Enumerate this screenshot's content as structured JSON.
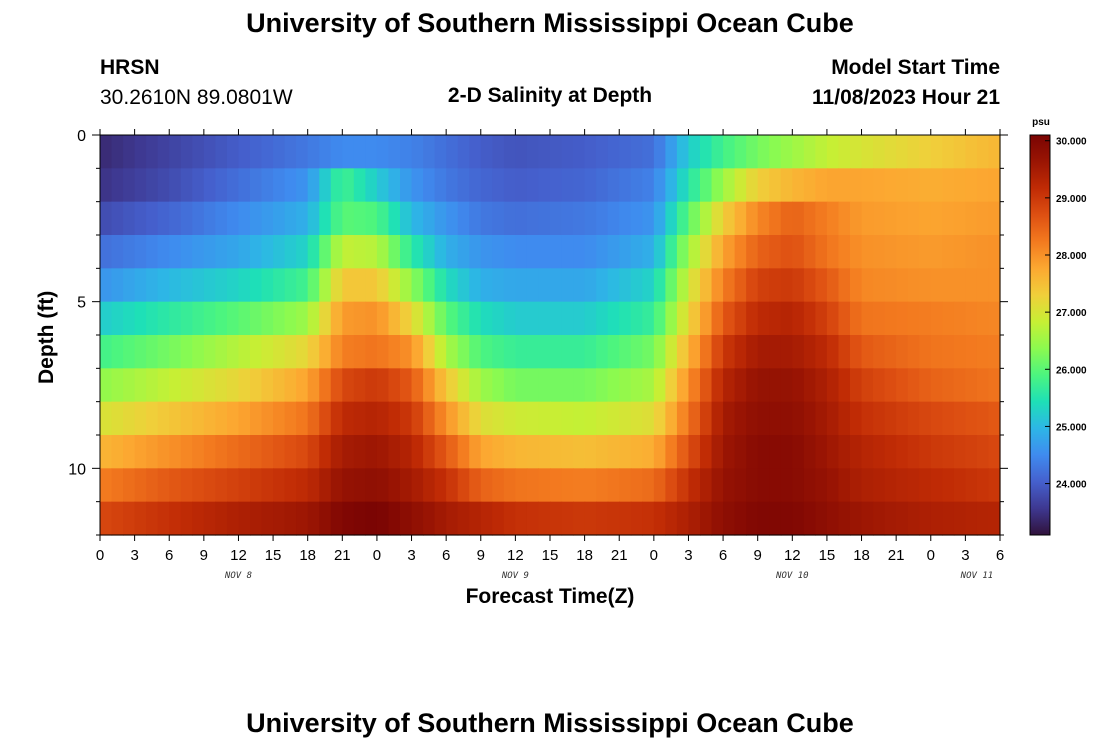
{
  "header": {
    "title_top": "University of Southern Mississippi Ocean Cube",
    "title_bottom": "University of Southern Mississippi Ocean Cube",
    "station": "HRSN",
    "coords": "30.2610N  89.0801W",
    "plot_title": "2-D Salinity at Depth",
    "start_label": "Model Start Time",
    "start_value": "11/08/2023 Hour 21"
  },
  "chart_data": {
    "type": "heatmap",
    "title": "2-D Salinity at Depth",
    "xlabel": "Forecast Time(Z)",
    "ylabel": "Depth (ft)",
    "x_ticks": [
      "0",
      "3",
      "6",
      "9",
      "12",
      "15",
      "18",
      "21",
      "0",
      "3",
      "6",
      "9",
      "12",
      "15",
      "18",
      "21",
      "0",
      "3",
      "6",
      "9",
      "12",
      "15",
      "18",
      "21",
      "0",
      "3",
      "6"
    ],
    "x_range_hours": [
      0,
      78
    ],
    "day_labels": [
      {
        "label": "NOV 8",
        "hour": 12
      },
      {
        "label": "NOV 9",
        "hour": 36
      },
      {
        "label": "NOV 10",
        "hour": 60
      },
      {
        "label": "NOV 11",
        "hour": 76
      }
    ],
    "y_ticks": [
      "0",
      "5",
      "10"
    ],
    "y_range_ft": [
      0,
      12
    ],
    "depth_levels_ft": [
      0.5,
      1.5,
      2.5,
      3.5,
      4.5,
      5.5,
      6.5,
      7.5,
      8.5,
      9.5,
      10.5,
      11.5
    ],
    "units": "psu",
    "colorbar_ticks": [
      "30.000",
      "29.000",
      "28.000",
      "27.000",
      "26.000",
      "25.000",
      "24.000"
    ],
    "color_range": [
      23.1,
      30.1
    ],
    "colorbar_stops": [
      "#30123b",
      "#3e3891",
      "#4560cd",
      "#3f8bef",
      "#2db6e6",
      "#1ee0b7",
      "#4cf57f",
      "#8cfa4f",
      "#c7ef34",
      "#f0cf3a",
      "#fca831",
      "#f37a1f",
      "#de5012",
      "#c02b05",
      "#9a1503",
      "#7a0403"
    ],
    "time_keys_hours": [
      0,
      6,
      12,
      18,
      21,
      24,
      27,
      30,
      33,
      36,
      42,
      48,
      51,
      54,
      57,
      60,
      63,
      66,
      72,
      78
    ],
    "salinity_psu": [
      [
        23.4,
        23.7,
        24.0,
        24.3,
        24.5,
        24.5,
        24.4,
        24.2,
        24.0,
        23.9,
        24.0,
        24.2,
        25.2,
        25.8,
        26.2,
        26.5,
        26.8,
        27.0,
        27.3,
        27.6
      ],
      [
        23.5,
        23.8,
        24.2,
        24.6,
        25.8,
        25.2,
        24.6,
        24.3,
        24.1,
        24.0,
        24.1,
        24.4,
        25.5,
        26.5,
        27.3,
        27.6,
        27.8,
        27.8,
        27.7,
        27.8
      ],
      [
        23.8,
        24.1,
        24.5,
        24.9,
        26.0,
        25.9,
        25.0,
        24.6,
        24.3,
        24.2,
        24.3,
        24.6,
        26.0,
        27.3,
        28.1,
        28.5,
        28.2,
        27.9,
        27.8,
        27.9
      ],
      [
        24.2,
        24.5,
        24.8,
        25.3,
        26.8,
        26.7,
        25.6,
        24.9,
        24.6,
        24.5,
        24.5,
        24.9,
        26.5,
        27.8,
        28.5,
        28.7,
        28.3,
        28.0,
        27.9,
        28.0
      ],
      [
        24.6,
        25.0,
        25.3,
        25.8,
        27.4,
        27.4,
        26.4,
        25.4,
        24.9,
        24.8,
        24.8,
        25.3,
        26.9,
        28.2,
        28.9,
        29.0,
        28.6,
        28.1,
        28.0,
        28.0
      ],
      [
        25.2,
        25.6,
        26.0,
        26.5,
        27.9,
        28.0,
        27.2,
        26.0,
        25.4,
        25.2,
        25.2,
        25.7,
        27.2,
        28.6,
        29.2,
        29.3,
        28.9,
        28.3,
        28.2,
        28.1
      ],
      [
        25.8,
        26.2,
        26.7,
        27.2,
        28.2,
        28.3,
        28.0,
        26.6,
        25.9,
        25.7,
        25.7,
        26.2,
        27.6,
        29.0,
        29.5,
        29.5,
        29.2,
        28.6,
        28.3,
        28.2
      ],
      [
        26.4,
        26.8,
        27.2,
        27.8,
        28.8,
        29.0,
        28.6,
        27.4,
        26.5,
        26.2,
        26.2,
        26.6,
        28.0,
        29.3,
        29.7,
        29.7,
        29.4,
        28.9,
        28.5,
        28.3
      ],
      [
        27.0,
        27.4,
        27.8,
        28.3,
        29.2,
        29.3,
        29.0,
        28.0,
        27.1,
        26.9,
        26.8,
        27.1,
        28.3,
        29.5,
        29.8,
        29.8,
        29.5,
        29.1,
        28.8,
        28.6
      ],
      [
        27.6,
        28.0,
        28.4,
        28.8,
        29.5,
        29.6,
        29.3,
        28.6,
        27.8,
        27.6,
        27.5,
        27.7,
        28.7,
        29.6,
        29.9,
        29.9,
        29.6,
        29.3,
        29.0,
        28.8
      ],
      [
        28.2,
        28.6,
        28.9,
        29.2,
        29.7,
        29.8,
        29.5,
        29.1,
        28.5,
        28.3,
        28.2,
        28.4,
        29.1,
        29.7,
        29.9,
        29.9,
        29.7,
        29.4,
        29.2,
        29.0
      ],
      [
        28.8,
        29.1,
        29.4,
        29.6,
        30.0,
        30.1,
        29.8,
        29.5,
        29.3,
        29.1,
        29.0,
        29.1,
        29.4,
        29.8,
        30.0,
        30.0,
        29.8,
        29.6,
        29.4,
        29.3
      ]
    ]
  }
}
